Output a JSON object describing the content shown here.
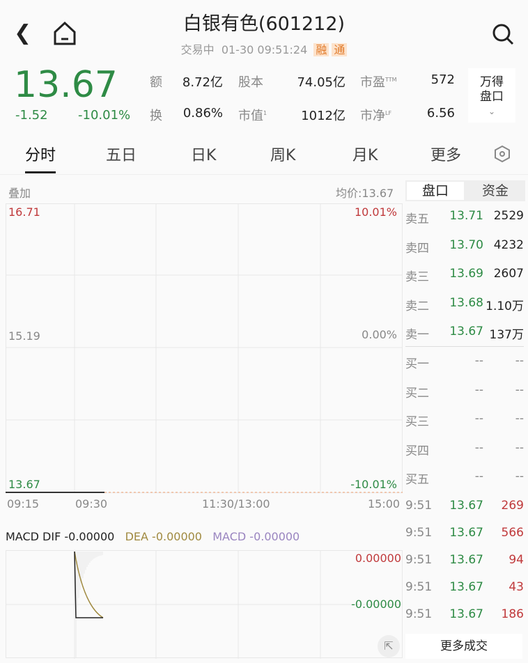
{
  "header": {
    "title": "白银有色(601212)",
    "status": "交易中",
    "datetime": "01-30 09:51:24",
    "tags": [
      "融",
      "通"
    ]
  },
  "quote": {
    "price": "13.67",
    "change": "-1.52",
    "change_pct": "-10.01%"
  },
  "stats": [
    {
      "label": "额",
      "value": "8.72亿"
    },
    {
      "label": "股本",
      "value": "74.05亿"
    },
    {
      "label": "市盈",
      "sup": "TTM",
      "value": "572"
    },
    {
      "label": "换",
      "value": "0.86%"
    },
    {
      "label": "市值",
      "sup": "1",
      "value": "1012亿"
    },
    {
      "label": "市净",
      "sup": "LF",
      "value": "6.56"
    }
  ],
  "wind_button": {
    "line1": "万得",
    "line2": "盘口"
  },
  "tabs": [
    "分时",
    "五日",
    "日K",
    "周K",
    "月K",
    "更多"
  ],
  "chart": {
    "overlay": "叠加",
    "avg_price": "均价:13.67",
    "y_high": "16.71",
    "y_mid": "15.19",
    "y_low": "13.67",
    "pct_high": "10.01%",
    "pct_mid": "0.00%",
    "pct_low": "-10.01%",
    "x_ticks": [
      "09:15",
      "09:30",
      "11:30/13:00",
      "15:00"
    ]
  },
  "macd": {
    "dif": "MACD DIF -0.00000",
    "dea": "DEA -0.00000",
    "macd": "MACD -0.00000",
    "y_top": "0.00000",
    "y_mid": "-0.00000",
    "colors": {
      "dif": "#222222",
      "dea": "#a08a40",
      "macd": "#9a85c0"
    }
  },
  "book_tabs": [
    "盘口",
    "资金"
  ],
  "asks": [
    {
      "label": "卖五",
      "price": "13.71",
      "vol": "2529"
    },
    {
      "label": "卖四",
      "price": "13.70",
      "vol": "4232"
    },
    {
      "label": "卖三",
      "price": "13.69",
      "vol": "2607"
    },
    {
      "label": "卖二",
      "price": "13.68",
      "vol": "1.10万"
    },
    {
      "label": "卖一",
      "price": "13.67",
      "vol": "137万"
    }
  ],
  "bids": [
    {
      "label": "买一",
      "price": "--",
      "vol": "--"
    },
    {
      "label": "买二",
      "price": "--",
      "vol": "--"
    },
    {
      "label": "买三",
      "price": "--",
      "vol": "--"
    },
    {
      "label": "买四",
      "price": "--",
      "vol": "--"
    },
    {
      "label": "买五",
      "price": "--",
      "vol": "--"
    }
  ],
  "trades": [
    {
      "time": "9:51",
      "price": "13.67",
      "vol": "269"
    },
    {
      "time": "9:51",
      "price": "13.67",
      "vol": "566"
    },
    {
      "time": "9:51",
      "price": "13.67",
      "vol": "94"
    },
    {
      "time": "9:51",
      "price": "13.67",
      "vol": "43"
    },
    {
      "time": "9:51",
      "price": "13.67",
      "vol": "186"
    }
  ],
  "more_trades": "更多成交"
}
